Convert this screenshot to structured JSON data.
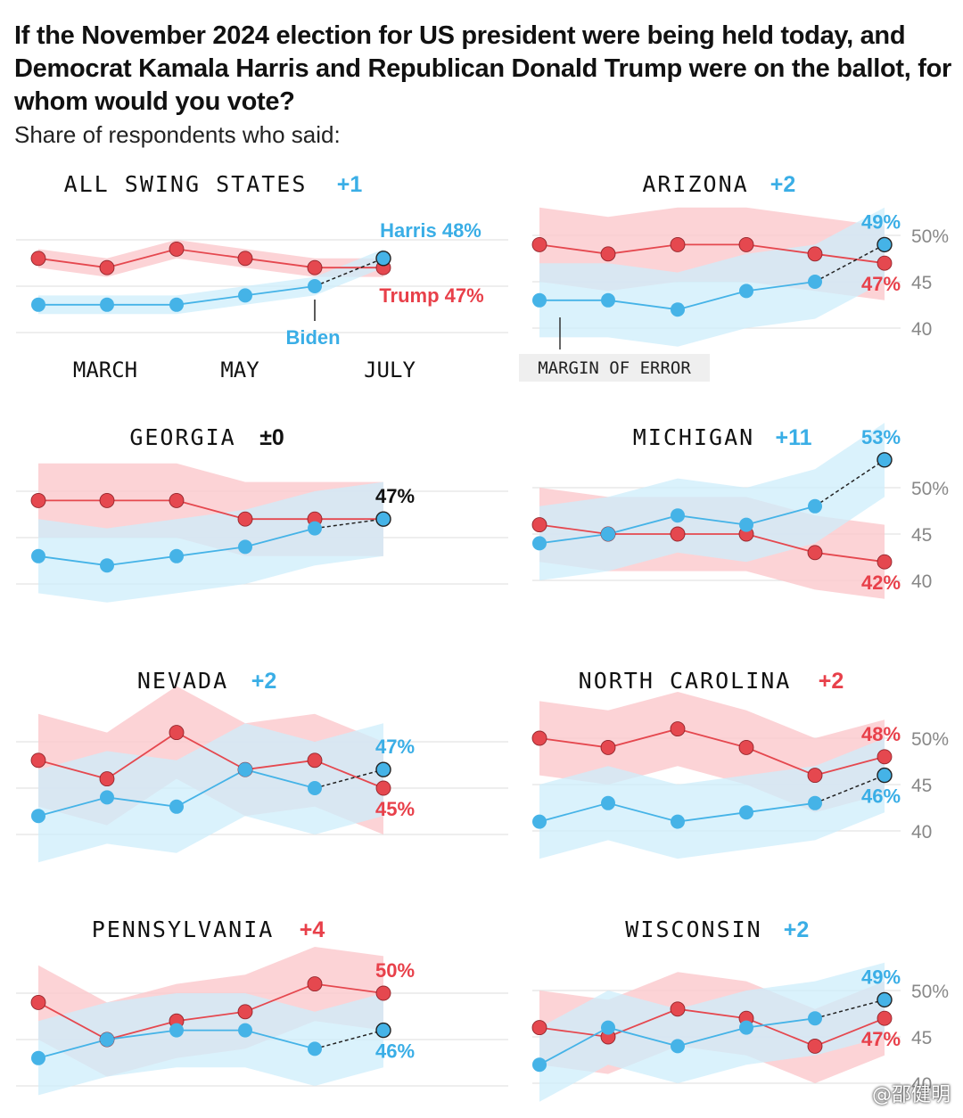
{
  "title": "If the November 2024 election for US president were being held today, and Democrat Kamala Harris and Republican Donald Trump were on the ballot, for whom would you vote?",
  "subtitle": "Share of respondents who said:",
  "watermark": "@邵健明",
  "colors": {
    "harris": "#45b3e7",
    "harris_band": "#cdeefb",
    "trump": "#e5484f",
    "trump_band": "#fbc8cc",
    "harris_text": "#3aaee6",
    "trump_text": "#e8404a",
    "axis_text": "#888888",
    "grid": "#e3e3e3"
  },
  "chart_data": [
    {
      "type": "line",
      "title": "ALL SWING STATES",
      "lead": "+1",
      "lead_party": "harris",
      "x_labels": [
        "MARCH",
        "MAY",
        "JULY"
      ],
      "ylim": [
        40,
        52
      ],
      "series": [
        {
          "name": "Harris",
          "party": "harris",
          "values": [
            43,
            43,
            43,
            44,
            45,
            48
          ],
          "lower": [
            42,
            42,
            42,
            43,
            44,
            47
          ],
          "upper": [
            44,
            44,
            44,
            45,
            46,
            49
          ]
        },
        {
          "name": "Trump",
          "party": "trump",
          "values": [
            48,
            47,
            49,
            48,
            47,
            47
          ],
          "lower": [
            47,
            46,
            48,
            47,
            46,
            46
          ],
          "upper": [
            49,
            48,
            50,
            49,
            48,
            48
          ]
        }
      ],
      "annotations": {
        "harris_end": "Harris 48%",
        "trump_end": "Trump 47%",
        "biden": "Biden"
      }
    },
    {
      "type": "line",
      "title": "ARIZONA",
      "lead": "+2",
      "lead_party": "harris",
      "ylim": [
        40,
        52
      ],
      "y_ticks": [
        "50%",
        "45",
        "40"
      ],
      "margin_label": "MARGIN OF ERROR",
      "series": [
        {
          "name": "Harris",
          "party": "harris",
          "values": [
            43,
            43,
            42,
            44,
            45,
            49
          ],
          "lower": [
            39,
            39,
            38,
            40,
            41,
            45
          ],
          "upper": [
            47,
            47,
            46,
            48,
            49,
            53
          ]
        },
        {
          "name": "Trump",
          "party": "trump",
          "values": [
            49,
            48,
            49,
            49,
            48,
            47
          ],
          "lower": [
            45,
            44,
            45,
            45,
            44,
            43
          ],
          "upper": [
            53,
            52,
            53,
            53,
            52,
            51
          ]
        }
      ],
      "end_labels": {
        "harris": "49%",
        "trump": "47%"
      }
    },
    {
      "type": "line",
      "title": "GEORGIA",
      "lead": "±0",
      "lead_party": "neutral",
      "ylim": [
        40,
        52
      ],
      "series": [
        {
          "name": "Harris",
          "party": "harris",
          "values": [
            43,
            42,
            43,
            44,
            46,
            47
          ],
          "lower": [
            39,
            38,
            39,
            40,
            42,
            43
          ],
          "upper": [
            47,
            46,
            47,
            48,
            50,
            51
          ]
        },
        {
          "name": "Trump",
          "party": "trump",
          "values": [
            49,
            49,
            49,
            47,
            47,
            47
          ],
          "lower": [
            45,
            45,
            45,
            43,
            43,
            43
          ],
          "upper": [
            53,
            53,
            53,
            51,
            51,
            51
          ]
        }
      ],
      "end_labels": {
        "tie": "47%"
      }
    },
    {
      "type": "line",
      "title": "MICHIGAN",
      "lead": "+11",
      "lead_party": "harris",
      "ylim": [
        40,
        52
      ],
      "y_ticks": [
        "50%",
        "45",
        "40"
      ],
      "series": [
        {
          "name": "Harris",
          "party": "harris",
          "values": [
            44,
            45,
            47,
            46,
            48,
            53
          ],
          "lower": [
            40,
            41,
            43,
            42,
            44,
            49
          ],
          "upper": [
            48,
            49,
            51,
            50,
            52,
            57
          ]
        },
        {
          "name": "Trump",
          "party": "trump",
          "values": [
            46,
            45,
            45,
            45,
            43,
            42
          ],
          "lower": [
            42,
            41,
            41,
            41,
            39,
            38
          ],
          "upper": [
            50,
            49,
            49,
            49,
            47,
            46
          ]
        }
      ],
      "end_labels": {
        "harris": "53%",
        "trump": "42%"
      }
    },
    {
      "type": "line",
      "title": "NEVADA",
      "lead": "+2",
      "lead_party": "harris",
      "ylim": [
        40,
        52
      ],
      "series": [
        {
          "name": "Harris",
          "party": "harris",
          "values": [
            42,
            44,
            43,
            47,
            45,
            47
          ],
          "lower": [
            37,
            39,
            38,
            42,
            40,
            42
          ],
          "upper": [
            47,
            49,
            48,
            52,
            50,
            52
          ]
        },
        {
          "name": "Trump",
          "party": "trump",
          "values": [
            48,
            46,
            51,
            47,
            48,
            45
          ],
          "lower": [
            43,
            41,
            46,
            42,
            43,
            40
          ],
          "upper": [
            53,
            51,
            56,
            52,
            53,
            50
          ]
        }
      ],
      "end_labels": {
        "harris": "47%",
        "trump": "45%"
      }
    },
    {
      "type": "line",
      "title": "NORTH CAROLINA",
      "lead": "+2",
      "lead_party": "trump",
      "ylim": [
        40,
        52
      ],
      "y_ticks": [
        "50%",
        "45",
        "40"
      ],
      "series": [
        {
          "name": "Harris",
          "party": "harris",
          "values": [
            41,
            43,
            41,
            42,
            43,
            46
          ],
          "lower": [
            37,
            39,
            37,
            38,
            39,
            42
          ],
          "upper": [
            45,
            47,
            45,
            46,
            47,
            50
          ]
        },
        {
          "name": "Trump",
          "party": "trump",
          "values": [
            50,
            49,
            51,
            49,
            46,
            48
          ],
          "lower": [
            46,
            45,
            47,
            45,
            42,
            44
          ],
          "upper": [
            54,
            53,
            55,
            53,
            50,
            52
          ]
        }
      ],
      "end_labels": {
        "harris": "46%",
        "trump": "48%"
      }
    },
    {
      "type": "line",
      "title": "PENNSYLVANIA",
      "lead": "+4",
      "lead_party": "trump",
      "ylim": [
        40,
        52
      ],
      "series": [
        {
          "name": "Harris",
          "party": "harris",
          "values": [
            43,
            45,
            46,
            46,
            44,
            46
          ],
          "lower": [
            39,
            41,
            42,
            42,
            40,
            42
          ],
          "upper": [
            47,
            49,
            50,
            50,
            48,
            50
          ]
        },
        {
          "name": "Trump",
          "party": "trump",
          "values": [
            49,
            45,
            47,
            48,
            51,
            50
          ],
          "lower": [
            45,
            41,
            43,
            44,
            47,
            46
          ],
          "upper": [
            53,
            49,
            51,
            52,
            55,
            54
          ]
        }
      ],
      "end_labels": {
        "harris": "46%",
        "trump": "50%"
      }
    },
    {
      "type": "line",
      "title": "WISCONSIN",
      "lead": "+2",
      "lead_party": "harris",
      "ylim": [
        40,
        52
      ],
      "y_ticks": [
        "50%",
        "45",
        "40"
      ],
      "series": [
        {
          "name": "Harris",
          "party": "harris",
          "values": [
            42,
            46,
            44,
            46,
            47,
            49
          ],
          "lower": [
            38,
            42,
            40,
            42,
            43,
            45
          ],
          "upper": [
            46,
            50,
            48,
            50,
            51,
            53
          ]
        },
        {
          "name": "Trump",
          "party": "trump",
          "values": [
            46,
            45,
            48,
            47,
            44,
            47
          ],
          "lower": [
            42,
            41,
            44,
            43,
            40,
            43
          ],
          "upper": [
            50,
            49,
            52,
            51,
            48,
            51
          ]
        }
      ],
      "end_labels": {
        "harris": "49%",
        "trump": "47%"
      }
    }
  ]
}
